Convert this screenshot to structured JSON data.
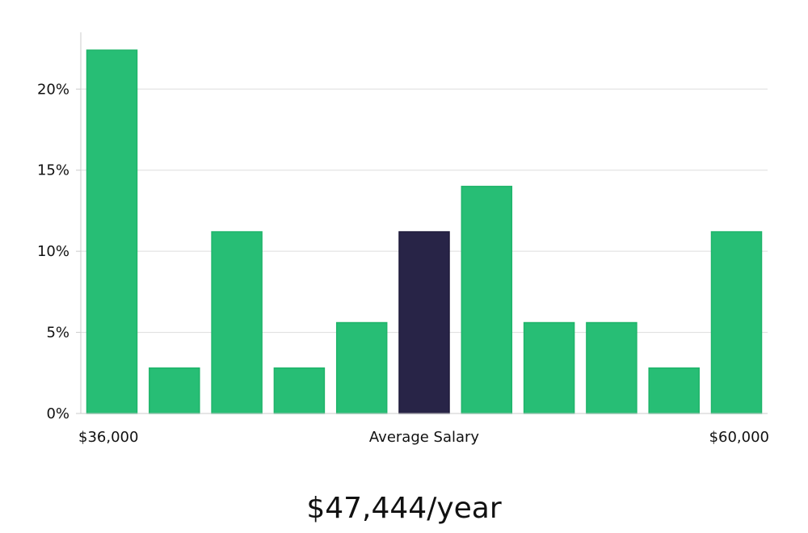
{
  "chart_data": {
    "type": "bar",
    "values": [
      22.4,
      2.8,
      11.2,
      2.8,
      5.6,
      11.2,
      14.0,
      5.6,
      5.6,
      2.8,
      11.2
    ],
    "highlight_index": 5,
    "ylim": [
      0,
      23.5
    ],
    "y_ticks": [
      0,
      5,
      10,
      15,
      20
    ],
    "y_tick_labels": [
      "0%",
      "5%",
      "10%",
      "15%",
      "20%"
    ],
    "x_labels": {
      "left": "$36,000",
      "center": "Average Salary",
      "right": "$60,000"
    },
    "colors": {
      "bar": "#27be75",
      "bar_edge": "#1fb46a",
      "highlight": "#282447",
      "grid": "#dddddd",
      "axis": "#cccccc"
    },
    "grid": true
  },
  "footer": {
    "salary_text": "$47,444/year"
  }
}
